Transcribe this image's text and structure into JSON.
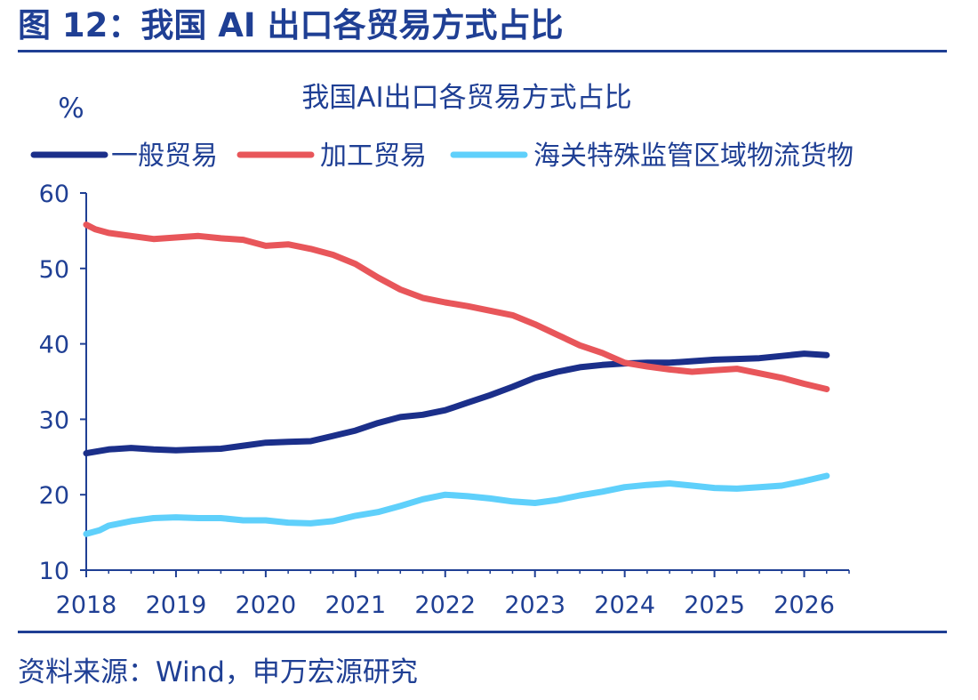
{
  "figure": {
    "title": "图 12：我国 AI 出口各贸易方式占比",
    "source": "资料来源：Wind，申万宏源研究"
  },
  "colors": {
    "header_blue": "#1f3f94",
    "axis": "#1f3f94",
    "general_trade": "#1b2f8a",
    "processing_trade": "#e8565a",
    "special_zone": "#5fd0fb"
  },
  "chart_data": {
    "type": "line",
    "title": "我国AI出口各贸易方式占比",
    "ylabel": "%",
    "xlabel": "",
    "ylim": [
      10,
      60
    ],
    "yticks": [
      "10",
      "20",
      "30",
      "40",
      "50",
      "60"
    ],
    "xlim": [
      2018,
      2026.5
    ],
    "xticks": [
      "2018",
      "2019",
      "2020",
      "2021",
      "2022",
      "2023",
      "2024",
      "2025",
      "2026"
    ],
    "grid": false,
    "legend_position": "top",
    "series": [
      {
        "name": "一般贸易",
        "x": [
          2018.0,
          2018.25,
          2018.5,
          2018.75,
          2019.0,
          2019.25,
          2019.5,
          2019.75,
          2020.0,
          2020.25,
          2020.5,
          2020.75,
          2021.0,
          2021.25,
          2021.5,
          2021.75,
          2022.0,
          2022.25,
          2022.5,
          2022.75,
          2023.0,
          2023.25,
          2023.5,
          2023.75,
          2024.0,
          2024.25,
          2024.5,
          2024.75,
          2025.0,
          2025.25,
          2025.5,
          2025.75,
          2026.0,
          2026.25
        ],
        "y": [
          25.5,
          26.0,
          26.2,
          26.0,
          25.9,
          26.0,
          26.1,
          26.5,
          26.9,
          27.0,
          27.1,
          27.8,
          28.5,
          29.5,
          30.3,
          30.6,
          31.2,
          32.2,
          33.2,
          34.3,
          35.5,
          36.3,
          36.9,
          37.2,
          37.4,
          37.5,
          37.5,
          37.7,
          37.9,
          38.0,
          38.1,
          38.4,
          38.7,
          38.5
        ]
      },
      {
        "name": "加工贸易",
        "x": [
          2018.0,
          2018.1,
          2018.25,
          2018.5,
          2018.75,
          2019.0,
          2019.25,
          2019.5,
          2019.75,
          2020.0,
          2020.25,
          2020.5,
          2020.75,
          2021.0,
          2021.25,
          2021.5,
          2021.75,
          2022.0,
          2022.25,
          2022.5,
          2022.75,
          2023.0,
          2023.25,
          2023.5,
          2023.75,
          2024.0,
          2024.25,
          2024.5,
          2024.75,
          2025.0,
          2025.25,
          2025.5,
          2025.75,
          2026.0,
          2026.25
        ],
        "y": [
          55.8,
          55.2,
          54.7,
          54.3,
          53.9,
          54.1,
          54.3,
          54.0,
          53.8,
          53.0,
          53.2,
          52.6,
          51.8,
          50.6,
          48.8,
          47.2,
          46.1,
          45.5,
          45.0,
          44.4,
          43.8,
          42.6,
          41.2,
          39.8,
          38.8,
          37.5,
          37.0,
          36.6,
          36.3,
          36.5,
          36.7,
          36.1,
          35.5,
          34.7,
          34.0
        ]
      },
      {
        "name": "海关特殊监管区域物流货物",
        "x": [
          2018.0,
          2018.15,
          2018.25,
          2018.5,
          2018.75,
          2019.0,
          2019.25,
          2019.5,
          2019.75,
          2020.0,
          2020.25,
          2020.5,
          2020.75,
          2021.0,
          2021.25,
          2021.5,
          2021.75,
          2022.0,
          2022.25,
          2022.5,
          2022.75,
          2023.0,
          2023.25,
          2023.5,
          2023.75,
          2024.0,
          2024.25,
          2024.5,
          2024.75,
          2025.0,
          2025.25,
          2025.5,
          2025.75,
          2026.0,
          2026.25
        ],
        "y": [
          14.8,
          15.3,
          15.9,
          16.5,
          16.9,
          17.0,
          16.9,
          16.9,
          16.6,
          16.6,
          16.3,
          16.2,
          16.5,
          17.2,
          17.7,
          18.5,
          19.4,
          20.0,
          19.8,
          19.5,
          19.1,
          18.9,
          19.3,
          19.9,
          20.4,
          21.0,
          21.3,
          21.5,
          21.2,
          20.9,
          20.8,
          21.0,
          21.2,
          21.8,
          22.5
        ]
      }
    ]
  }
}
